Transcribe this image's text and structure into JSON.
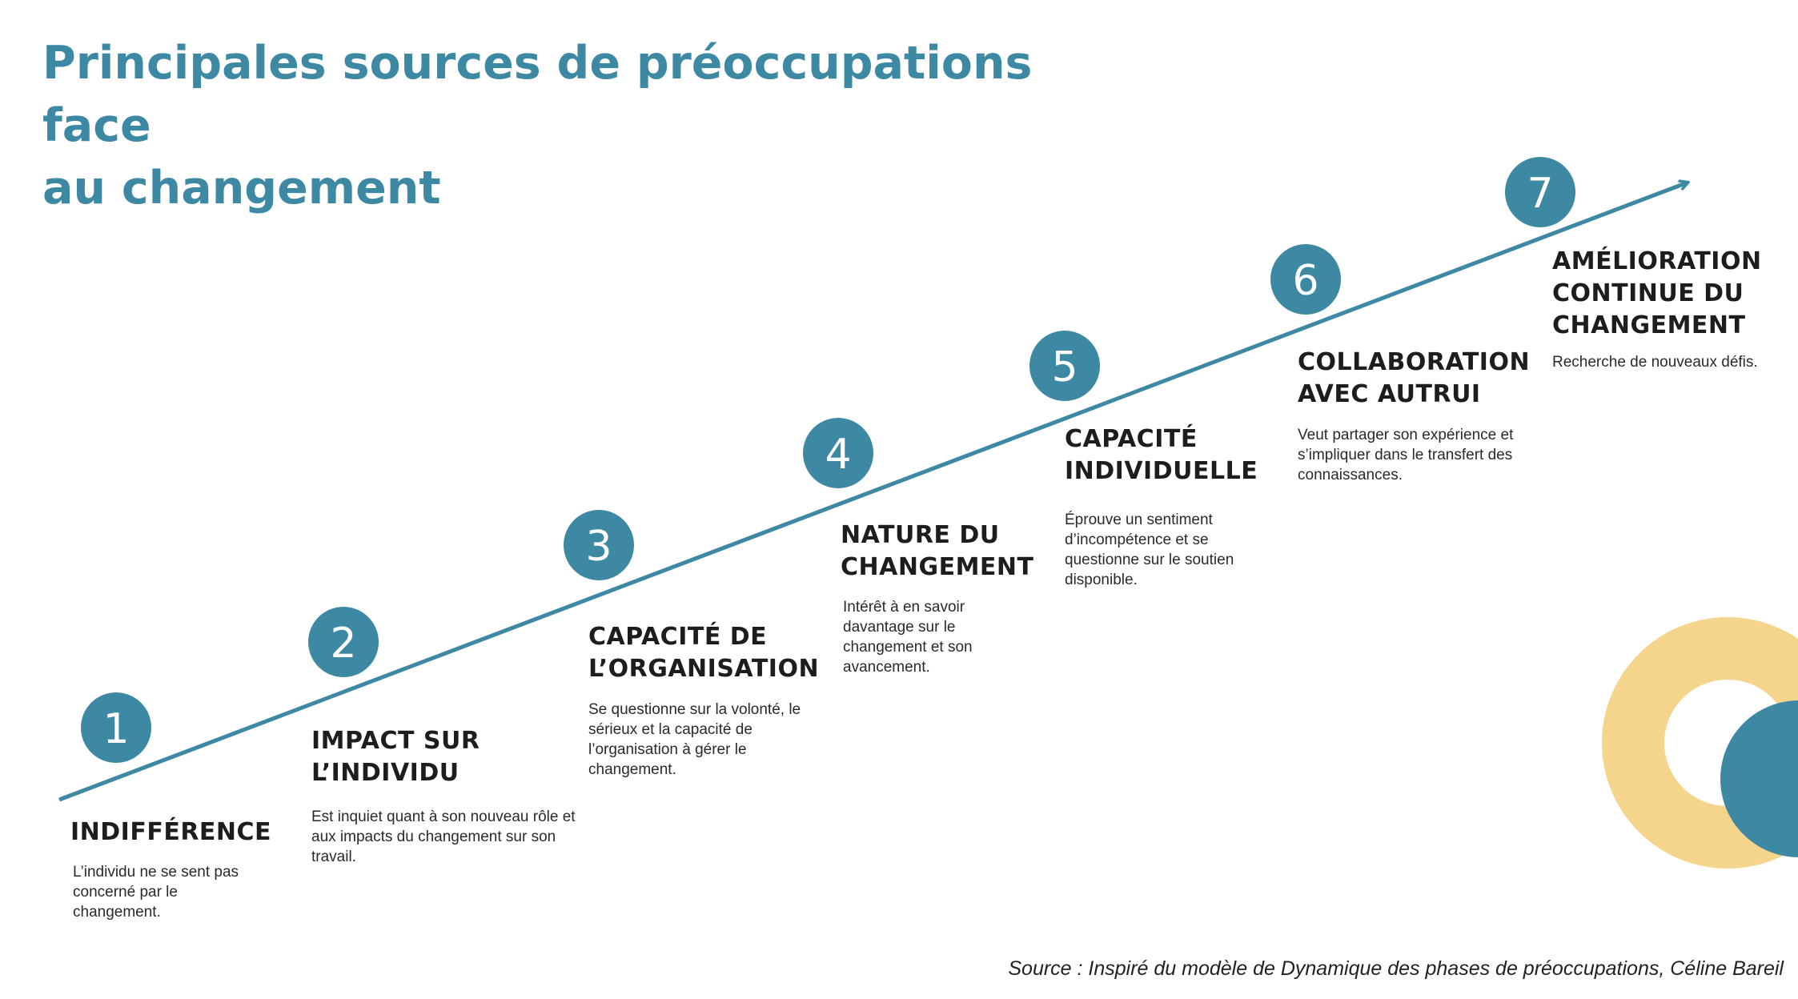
{
  "title": {
    "line1": "Principales sources de préoccupations face",
    "line2": "au changement"
  },
  "colors": {
    "accent": "#3d88a3",
    "deco_ring": "#f5d48c",
    "text": "#1d1d1d"
  },
  "steps": [
    {
      "number": "1",
      "label_lines": [
        "INDIFFÉRENCE"
      ],
      "description": "L’individu ne se sent pas concerné par le changement."
    },
    {
      "number": "2",
      "label_lines": [
        "IMPACT SUR",
        "L’INDIVIDU"
      ],
      "description": "Est inquiet quant à son nouveau rôle et aux impacts du changement sur son travail."
    },
    {
      "number": "3",
      "label_lines": [
        "CAPACITÉ DE",
        "L’ORGANISATION"
      ],
      "description": "Se questionne sur la volonté, le sérieux et la capacité de l’organisation à gérer le changement."
    },
    {
      "number": "4",
      "label_lines": [
        "NATURE DU",
        "CHANGEMENT"
      ],
      "description": "Intérêt à en savoir davantage sur le changement et son avancement."
    },
    {
      "number": "5",
      "label_lines": [
        "CAPACITÉ",
        "INDIVIDUELLE"
      ],
      "description": "Éprouve un sentiment d’incompétence et se questionne sur le soutien disponible."
    },
    {
      "number": "6",
      "label_lines": [
        "COLLABORATION",
        "AVEC AUTRUI"
      ],
      "description": "Veut partager son expérience et s’impliquer dans le transfert des connaissances."
    },
    {
      "number": "7",
      "label_lines": [
        "AMÉLIORATION",
        "CONTINUE DU",
        "CHANGEMENT"
      ],
      "description": "Recherche de nouveaux défis."
    }
  ],
  "source": "Source : Inspiré du modèle de Dynamique des phases de préoccupations, Céline Bareil"
}
